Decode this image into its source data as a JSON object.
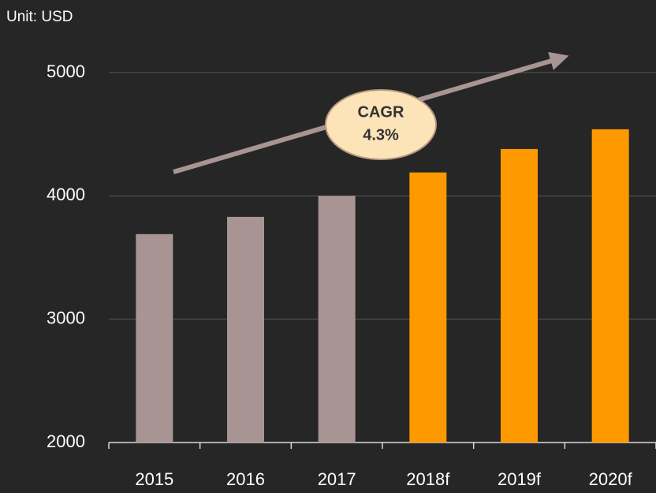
{
  "chart_data": {
    "type": "bar",
    "annotations": {
      "unit": "Unit: USD",
      "cagr_title": "CAGR",
      "cagr_value": "4.3%"
    },
    "categories": [
      "2015",
      "2016",
      "2017",
      "2018f",
      "2019f",
      "2020f"
    ],
    "values": [
      3690,
      3830,
      4000,
      4190,
      4380,
      4540
    ],
    "colors": [
      "#a89593",
      "#a89593",
      "#a89593",
      "#ff9900",
      "#ff9900",
      "#ff9900"
    ],
    "ylim": [
      2000,
      5000
    ],
    "yticks": [
      2000,
      3000,
      4000,
      5000
    ],
    "grid": true
  }
}
